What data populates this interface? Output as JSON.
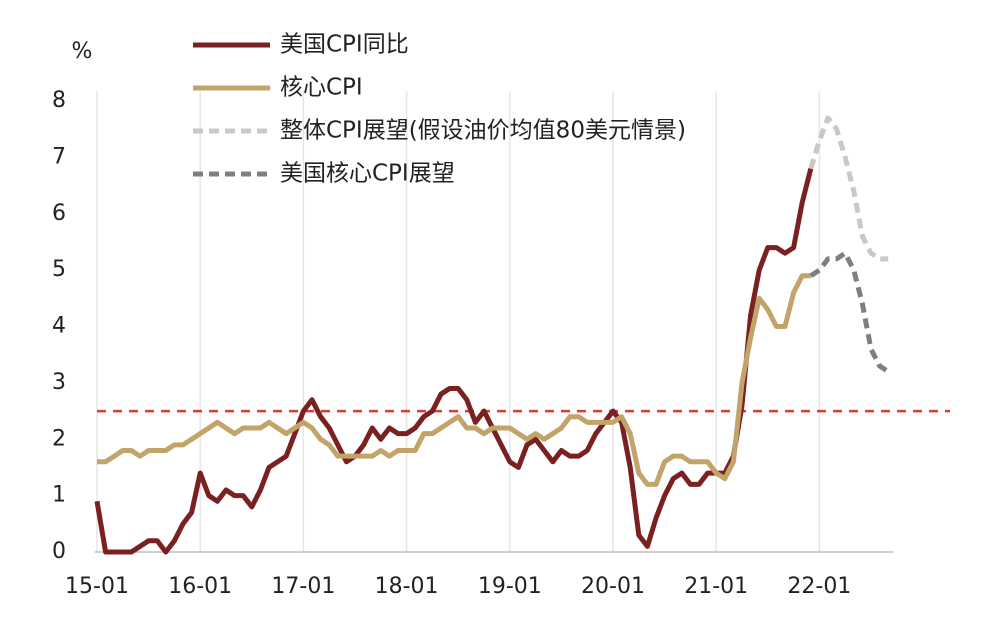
{
  "chart_data": {
    "type": "line",
    "y_label": "%",
    "categories": [
      "15-01",
      null,
      null,
      null,
      null,
      null,
      null,
      null,
      null,
      null,
      null,
      null,
      "16-01",
      null,
      null,
      null,
      null,
      null,
      null,
      null,
      null,
      null,
      null,
      null,
      "17-01",
      null,
      null,
      null,
      null,
      null,
      null,
      null,
      null,
      null,
      null,
      null,
      "18-01",
      null,
      null,
      null,
      null,
      null,
      null,
      null,
      null,
      null,
      null,
      null,
      "19-01",
      null,
      null,
      null,
      null,
      null,
      null,
      null,
      null,
      null,
      null,
      null,
      "20-01",
      null,
      null,
      null,
      null,
      null,
      null,
      null,
      null,
      null,
      null,
      null,
      "21-01",
      null,
      null,
      null,
      null,
      null,
      null,
      null,
      null,
      null,
      null,
      null,
      "22-01",
      null,
      null,
      null,
      null,
      null,
      null,
      null,
      null
    ],
    "series": [
      {
        "name": "美国CPI同比",
        "color": "#7b2020",
        "dashed": false,
        "values": [
          0.9,
          0.0,
          0.0,
          0.0,
          0.0,
          0.1,
          0.2,
          0.2,
          0.0,
          0.2,
          0.5,
          0.7,
          1.4,
          1.0,
          0.9,
          1.1,
          1.0,
          1.0,
          0.8,
          1.1,
          1.5,
          1.6,
          1.7,
          2.1,
          2.5,
          2.7,
          2.4,
          2.2,
          1.9,
          1.6,
          1.7,
          1.9,
          2.2,
          2.0,
          2.2,
          2.1,
          2.1,
          2.2,
          2.4,
          2.5,
          2.8,
          2.9,
          2.9,
          2.7,
          2.3,
          2.5,
          2.2,
          1.9,
          1.6,
          1.5,
          1.9,
          2.0,
          1.8,
          1.6,
          1.8,
          1.7,
          1.7,
          1.8,
          2.1,
          2.3,
          2.5,
          2.3,
          1.5,
          0.3,
          0.1,
          0.6,
          1.0,
          1.3,
          1.4,
          1.2,
          1.2,
          1.4,
          1.4,
          1.4,
          1.7,
          2.6,
          4.2,
          5.0,
          5.4,
          5.4,
          5.3,
          5.4,
          6.2,
          6.8,
          null,
          null,
          null,
          null,
          null,
          null,
          null,
          null,
          null
        ]
      },
      {
        "name": "核心CPI",
        "color": "#c2a46a",
        "dashed": false,
        "values": [
          1.6,
          1.6,
          1.7,
          1.8,
          1.8,
          1.7,
          1.8,
          1.8,
          1.8,
          1.9,
          1.9,
          2.0,
          2.1,
          2.2,
          2.3,
          2.2,
          2.1,
          2.2,
          2.2,
          2.2,
          2.3,
          2.2,
          2.1,
          2.2,
          2.3,
          2.2,
          2.0,
          1.9,
          1.7,
          1.7,
          1.7,
          1.7,
          1.7,
          1.8,
          1.7,
          1.8,
          1.8,
          1.8,
          2.1,
          2.1,
          2.2,
          2.3,
          2.4,
          2.2,
          2.2,
          2.1,
          2.2,
          2.2,
          2.2,
          2.1,
          2.0,
          2.1,
          2.0,
          2.1,
          2.2,
          2.4,
          2.4,
          2.3,
          2.3,
          2.3,
          2.3,
          2.4,
          2.1,
          1.4,
          1.2,
          1.2,
          1.6,
          1.7,
          1.7,
          1.6,
          1.6,
          1.6,
          1.4,
          1.3,
          1.6,
          3.0,
          3.8,
          4.5,
          4.3,
          4.0,
          4.0,
          4.6,
          4.9,
          4.9,
          null,
          null,
          null,
          null,
          null,
          null,
          null,
          null,
          null
        ]
      },
      {
        "name": "整体CPI展望(假设油价均值80美元情景)",
        "color": "#c8c8c8",
        "dashed": true,
        "values": [
          null,
          null,
          null,
          null,
          null,
          null,
          null,
          null,
          null,
          null,
          null,
          null,
          null,
          null,
          null,
          null,
          null,
          null,
          null,
          null,
          null,
          null,
          null,
          null,
          null,
          null,
          null,
          null,
          null,
          null,
          null,
          null,
          null,
          null,
          null,
          null,
          null,
          null,
          null,
          null,
          null,
          null,
          null,
          null,
          null,
          null,
          null,
          null,
          null,
          null,
          null,
          null,
          null,
          null,
          null,
          null,
          null,
          null,
          null,
          null,
          null,
          null,
          null,
          null,
          null,
          null,
          null,
          null,
          null,
          null,
          null,
          null,
          null,
          null,
          null,
          null,
          null,
          null,
          null,
          null,
          null,
          null,
          null,
          6.8,
          7.3,
          7.7,
          7.5,
          7.0,
          6.4,
          5.6,
          5.3,
          5.2,
          5.2
        ]
      },
      {
        "name": "美国核心CPI展望",
        "color": "#7f7f7f",
        "dashed": true,
        "values": [
          null,
          null,
          null,
          null,
          null,
          null,
          null,
          null,
          null,
          null,
          null,
          null,
          null,
          null,
          null,
          null,
          null,
          null,
          null,
          null,
          null,
          null,
          null,
          null,
          null,
          null,
          null,
          null,
          null,
          null,
          null,
          null,
          null,
          null,
          null,
          null,
          null,
          null,
          null,
          null,
          null,
          null,
          null,
          null,
          null,
          null,
          null,
          null,
          null,
          null,
          null,
          null,
          null,
          null,
          null,
          null,
          null,
          null,
          null,
          null,
          null,
          null,
          null,
          null,
          null,
          null,
          null,
          null,
          null,
          null,
          null,
          null,
          null,
          null,
          null,
          null,
          null,
          null,
          null,
          null,
          null,
          null,
          null,
          4.9,
          5.0,
          5.2,
          5.2,
          5.3,
          5.0,
          4.4,
          3.6,
          3.3,
          3.2
        ]
      }
    ],
    "reference_line": {
      "value": 2.5,
      "color": "#e03a2f"
    },
    "ylim": [
      0,
      8
    ],
    "yticks": [
      0,
      1,
      2,
      3,
      4,
      5,
      6,
      7,
      8
    ],
    "grid": "x"
  }
}
